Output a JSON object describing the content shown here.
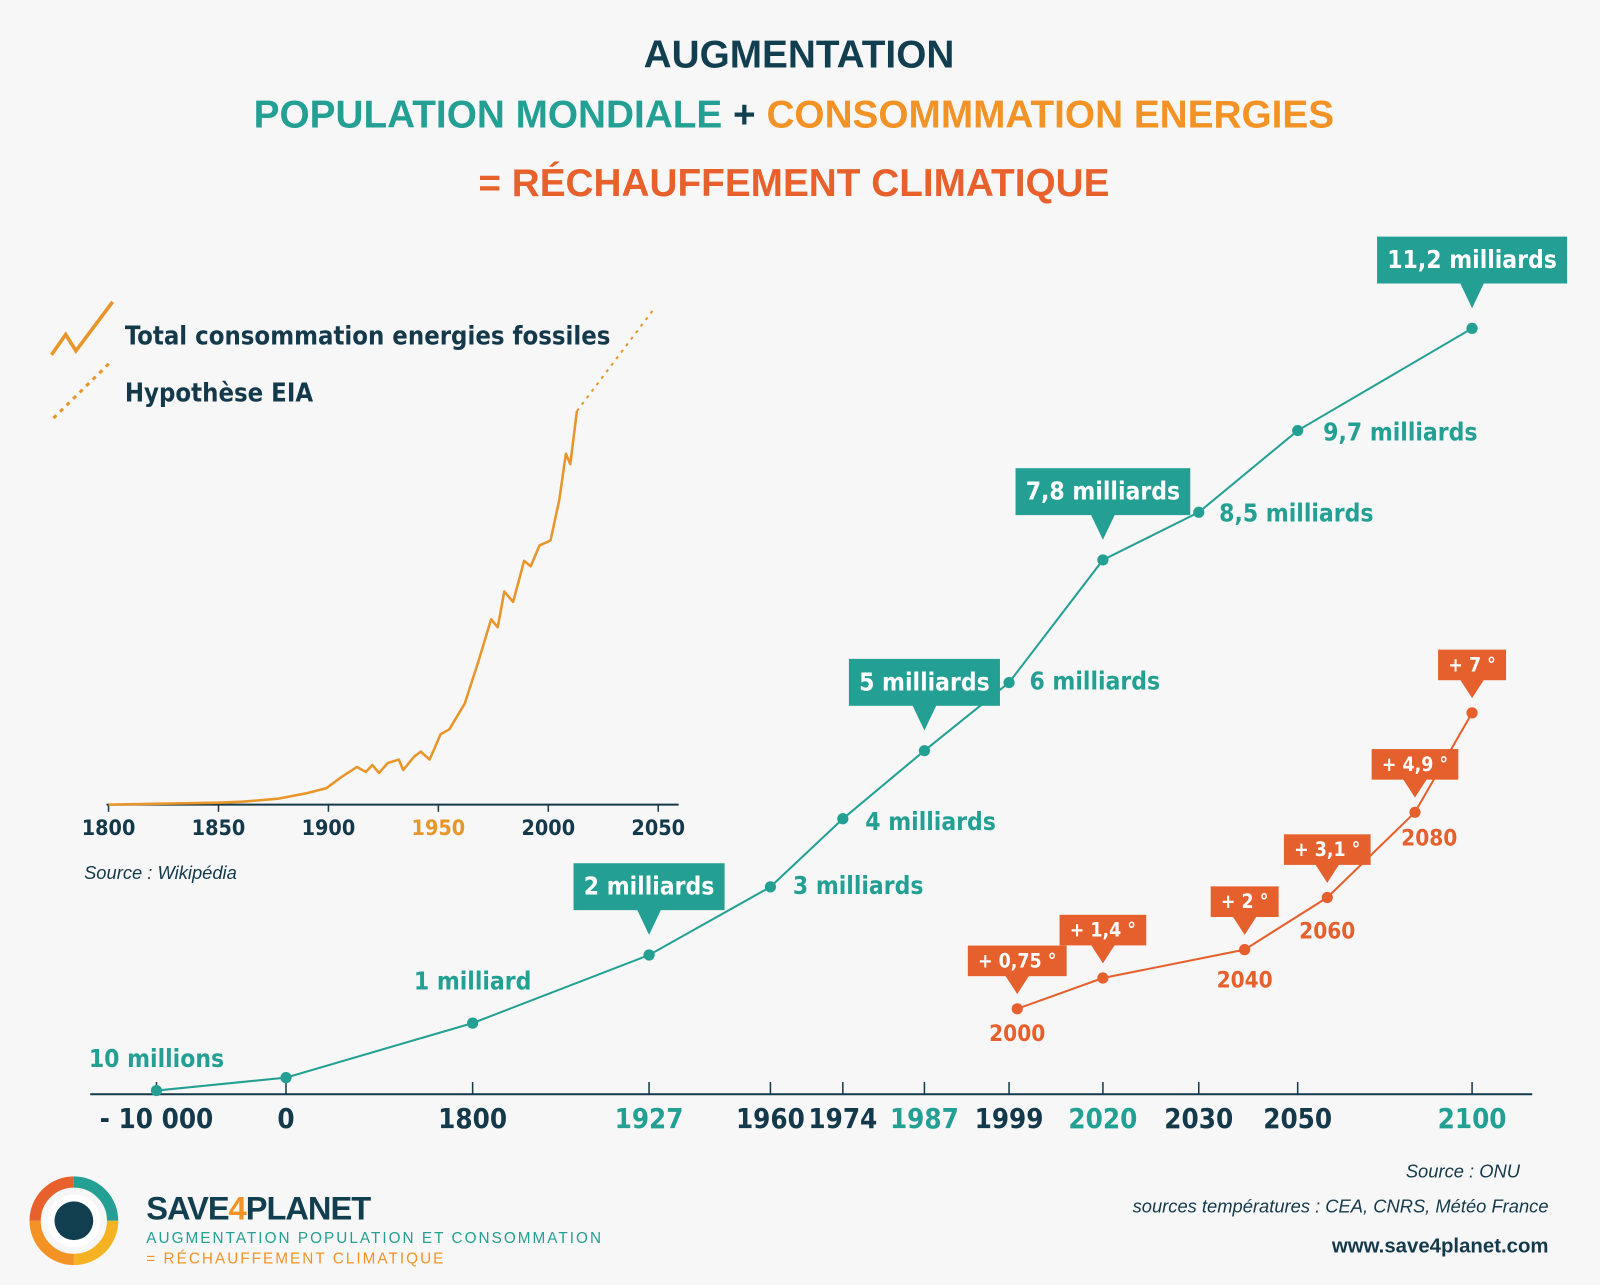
{
  "header": {
    "line1": "AUGMENTATION",
    "line2_part1": "POPULATION MONDIALE",
    "line2_plus": "+",
    "line2_part2": "CONSOMMMATION ENERGIES",
    "line3": "= RÉCHAUFFEMENT CLIMATIQUE"
  },
  "chart_data": [
    {
      "type": "line",
      "source": "Source : Wikipédia",
      "xlim": [
        1800,
        2050
      ],
      "xticks": [
        1800,
        1850,
        1900,
        1950,
        2000,
        2050
      ],
      "series": [
        {
          "name": "Total consommation energies fossiles",
          "color": "#e8952a",
          "x": [
            1800,
            1850,
            1861,
            1877,
            1890,
            1899,
            1906,
            1913,
            1917,
            1920,
            1923,
            1927,
            1932,
            1934,
            1939,
            1942,
            1946,
            1948,
            1951,
            1955,
            1962,
            1968,
            1974,
            1977,
            1980,
            1984,
            1989,
            1992,
            1996,
            2001,
            2005,
            2008,
            2010,
            2013
          ],
          "values": [
            0,
            0.4,
            0.6,
            1.2,
            2.3,
            3.3,
            5.6,
            7.6,
            6.6,
            8.0,
            6.4,
            8.4,
            9.1,
            7.0,
            9.7,
            10.7,
            9.1,
            11.1,
            14.2,
            15.2,
            20.4,
            28.6,
            37.4,
            35.8,
            43.0,
            40.9,
            49.2,
            48.1,
            52.3,
            53.3,
            61.5,
            70.8,
            68.7,
            79.4
          ]
        },
        {
          "name": "Hypothèse EIA",
          "color": "#e8952a",
          "dashed": true,
          "x": [
            2013,
            2048
          ],
          "values": [
            79.4,
            100
          ]
        }
      ]
    },
    {
      "type": "line",
      "color": "#23a093",
      "source": "Source : ONU",
      "categories": [
        "- 10 000",
        "0",
        "1800",
        "1927",
        "1960",
        "1974",
        "1987",
        "1999",
        "2020",
        "2030",
        "2050",
        "2100"
      ],
      "values": [
        0.01,
        0.2,
        1,
        2,
        3,
        4,
        5,
        6,
        7.8,
        8.5,
        9.7,
        11.2
      ],
      "value_labels": [
        "10 millions",
        null,
        "1 milliard",
        "2 milliards",
        "3 milliards",
        "4 milliards",
        "5 milliards",
        "6 milliards",
        "7,8 milliards",
        "8,5 milliards",
        "9,7 milliards",
        "11,2 milliards"
      ]
    },
    {
      "type": "line",
      "color": "#e5602d",
      "source": "sources températures : CEA, CNRS, Météo France",
      "categories": [
        "2000",
        null,
        "2040",
        "2060",
        "2080",
        null
      ],
      "values": [
        0.75,
        1.4,
        2,
        3.1,
        4.9,
        7
      ],
      "value_labels": [
        "+ 0,75 °",
        "+ 1,4 °",
        "+ 2 °",
        "+ 3,1 °",
        "+ 4,9 °",
        "+ 7 °"
      ]
    }
  ],
  "footer": {
    "logo_save": "SAVE",
    "logo_4": "4",
    "logo_planet": "PLANET",
    "tagline1": "AUGMENTATION POPULATION ET CONSOMMATION",
    "tagline2": "= RÉCHAUFFEMENT CLIMATIQUE",
    "website": "www.save4planet.com"
  }
}
